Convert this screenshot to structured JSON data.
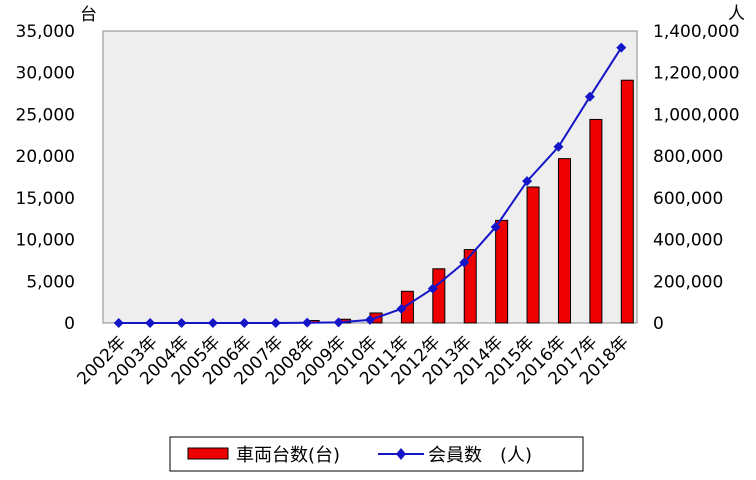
{
  "chart_data": {
    "type": "bar+line",
    "categories": [
      "2002年",
      "2003年",
      "2004年",
      "2005年",
      "2006年",
      "2007年",
      "2008年",
      "2009年",
      "2010年",
      "2011年",
      "2012年",
      "2013年",
      "2014年",
      "2015年",
      "2016年",
      "2017年",
      "2018年"
    ],
    "series": [
      {
        "name": "車両台数(台)",
        "type": "bar",
        "axis": "left",
        "color": "#ee0000",
        "values": [
          0,
          0,
          0,
          0,
          0,
          0,
          300,
          450,
          1200,
          3800,
          6500,
          8800,
          12300,
          16300,
          19700,
          24400,
          29100
        ]
      },
      {
        "name": "会員数　(人)",
        "type": "line",
        "axis": "right",
        "color": "#1515c8",
        "marker": "diamond",
        "values": [
          0,
          0,
          0,
          0,
          0,
          0,
          1500,
          3000,
          15000,
          68000,
          165000,
          290000,
          460000,
          680000,
          845000,
          1085000,
          1320000
        ]
      }
    ],
    "y_left": {
      "unit": "台",
      "min": 0,
      "max": 35000,
      "ticks": [
        0,
        5000,
        10000,
        15000,
        20000,
        25000,
        30000,
        35000
      ],
      "tick_labels": [
        "0",
        "5,000",
        "10,000",
        "15,000",
        "20,000",
        "25,000",
        "30,000",
        "35,000"
      ]
    },
    "y_right": {
      "unit": "人",
      "min": 0,
      "max": 1400000,
      "ticks": [
        0,
        200000,
        400000,
        600000,
        800000,
        1000000,
        1200000,
        1400000
      ],
      "tick_labels": [
        "0",
        "200,000",
        "400,000",
        "600,000",
        "800,000",
        "1,000,000",
        "1,200,000",
        "1,400,000"
      ]
    },
    "plot_background": "#eeeeee",
    "grid": false,
    "legend_position": "bottom-center"
  }
}
